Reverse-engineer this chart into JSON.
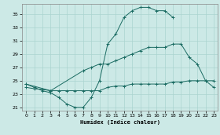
{
  "xlabel": "Humidex (Indice chaleur)",
  "bg_color": "#cce9e6",
  "grid_color": "#aad4d0",
  "line_color": "#1a6b62",
  "ylim": [
    20.5,
    36.5
  ],
  "xlim": [
    -0.5,
    23.5
  ],
  "yticks": [
    21,
    23,
    25,
    27,
    29,
    31,
    33,
    35
  ],
  "xticks": [
    0,
    1,
    2,
    3,
    4,
    5,
    6,
    7,
    8,
    9,
    10,
    11,
    12,
    13,
    14,
    15,
    16,
    17,
    18,
    19,
    20,
    21,
    22,
    23
  ],
  "line1_x": [
    0,
    1,
    2,
    3,
    4,
    5,
    6,
    7,
    8,
    9,
    10,
    11,
    12,
    13,
    14,
    15,
    16,
    17,
    18
  ],
  "line1_y": [
    24.5,
    24.0,
    23.5,
    23.2,
    22.5,
    21.5,
    21.0,
    21.0,
    22.5,
    25.0,
    30.5,
    32.0,
    34.5,
    35.5,
    36.0,
    36.0,
    35.5,
    35.5,
    34.5
  ],
  "line2_x": [
    0,
    3,
    7,
    8,
    9,
    10,
    11,
    12,
    13,
    14,
    15,
    16,
    17,
    18,
    19,
    20,
    21,
    22,
    23
  ],
  "line2_y": [
    24.5,
    23.5,
    26.5,
    27.0,
    27.5,
    27.5,
    28.0,
    28.5,
    29.0,
    29.5,
    30.0,
    30.0,
    30.0,
    30.5,
    30.5,
    28.5,
    27.5,
    25.0,
    24.0
  ],
  "line3_x": [
    0,
    1,
    2,
    3,
    4,
    5,
    6,
    7,
    8,
    9,
    10,
    11,
    12,
    13,
    14,
    15,
    16,
    17,
    18,
    19,
    20,
    21,
    22,
    23
  ],
  "line3_y": [
    24.0,
    23.8,
    23.7,
    23.5,
    23.5,
    23.5,
    23.5,
    23.5,
    23.5,
    23.5,
    24.0,
    24.2,
    24.2,
    24.5,
    24.5,
    24.5,
    24.5,
    24.5,
    24.8,
    24.8,
    25.0,
    25.0,
    25.0,
    25.0
  ]
}
